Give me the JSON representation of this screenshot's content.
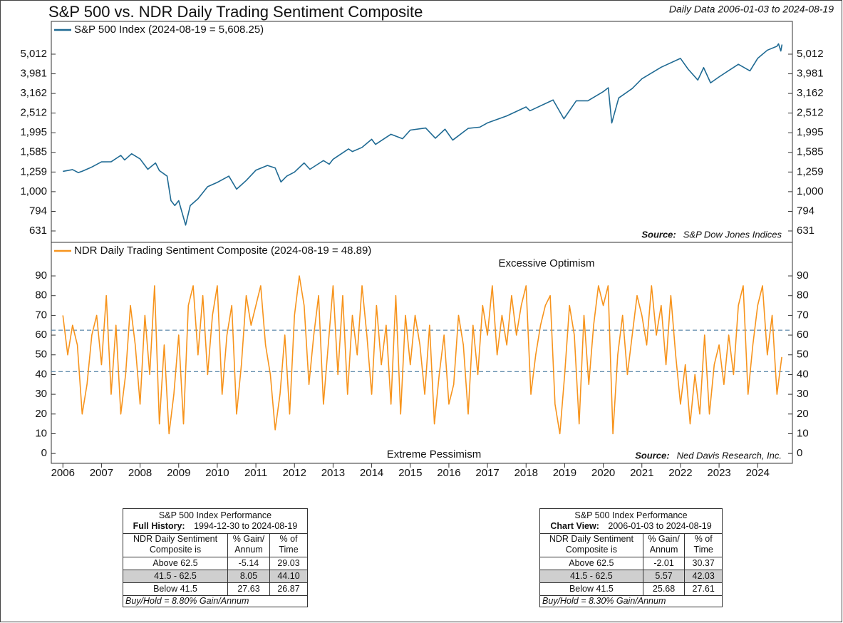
{
  "title": "S&P 500 vs. NDR Daily Trading Sentiment Composite",
  "subtitle": "Daily Data 2006-01-03 to 2024-08-19",
  "chart_data": [
    {
      "type": "line",
      "legend": "S&P 500 Index (2024-08-19 = 5,608.25)",
      "source_label": "Source:",
      "source": "S&P Dow Jones Indices",
      "log_scale": true,
      "xlim": [
        2005.7,
        2024.9
      ],
      "ylim": [
        552,
        7360
      ],
      "yticks": [
        {
          "value": 631,
          "label": "631"
        },
        {
          "value": 794,
          "label": "794"
        },
        {
          "value": 1000,
          "label": "1,000"
        },
        {
          "value": 1259,
          "label": "1,259"
        },
        {
          "value": 1585,
          "label": "1,585"
        },
        {
          "value": 1995,
          "label": "1,995"
        },
        {
          "value": 2512,
          "label": "2,512"
        },
        {
          "value": 3162,
          "label": "3,162"
        },
        {
          "value": 3981,
          "label": "3,981"
        },
        {
          "value": 5012,
          "label": "5,012"
        }
      ],
      "x": [
        2006.0,
        2006.25,
        2006.4,
        2006.5,
        2006.75,
        2007.0,
        2007.25,
        2007.5,
        2007.6,
        2007.78,
        2008.0,
        2008.2,
        2008.4,
        2008.5,
        2008.7,
        2008.8,
        2008.9,
        2009.0,
        2009.18,
        2009.3,
        2009.5,
        2009.75,
        2010.0,
        2010.3,
        2010.5,
        2010.75,
        2011.0,
        2011.3,
        2011.5,
        2011.65,
        2011.8,
        2012.0,
        2012.25,
        2012.4,
        2012.75,
        2012.9,
        2013.0,
        2013.4,
        2013.5,
        2013.75,
        2014.0,
        2014.1,
        2014.5,
        2014.8,
        2015.0,
        2015.4,
        2015.65,
        2015.9,
        2016.1,
        2016.5,
        2016.8,
        2017.0,
        2017.5,
        2018.0,
        2018.1,
        2018.7,
        2018.98,
        2019.3,
        2019.6,
        2020.0,
        2020.13,
        2020.22,
        2020.4,
        2020.75,
        2021.0,
        2021.5,
        2022.0,
        2022.2,
        2022.45,
        2022.6,
        2022.78,
        2023.0,
        2023.5,
        2023.8,
        2024.0,
        2024.25,
        2024.5,
        2024.54,
        2024.6,
        2024.63
      ],
      "series": [
        {
          "name": "S&P 500 Index",
          "color": "#1f6a93",
          "values": [
            1268,
            1295,
            1250,
            1270,
            1335,
            1418,
            1420,
            1530,
            1450,
            1560,
            1468,
            1300,
            1400,
            1280,
            1200,
            900,
            850,
            900,
            676,
            850,
            920,
            1060,
            1115,
            1200,
            1030,
            1140,
            1286,
            1360,
            1320,
            1120,
            1200,
            1258,
            1400,
            1300,
            1440,
            1380,
            1462,
            1650,
            1600,
            1680,
            1848,
            1740,
            1960,
            1860,
            2058,
            2110,
            1870,
            2080,
            1830,
            2100,
            2130,
            2239,
            2430,
            2700,
            2580,
            2930,
            2350,
            2900,
            2900,
            3230,
            3380,
            2237,
            3000,
            3350,
            3756,
            4300,
            4770,
            4200,
            3700,
            4280,
            3580,
            3840,
            4450,
            4120,
            4770,
            5250,
            5500,
            5660,
            5200,
            5608.25
          ]
        }
      ]
    },
    {
      "type": "line",
      "legend": "NDR Daily Trading Sentiment Composite (2024-08-19 = 48.89)",
      "source_label": "Source:",
      "source": "Ned Davis Research, Inc.",
      "top_note": "Excessive Optimism",
      "bottom_note": "Extreme Pessimism",
      "reference_lines": [
        62.5,
        41.5
      ],
      "xlim": [
        2005.7,
        2024.9
      ],
      "ylim": [
        -5,
        107
      ],
      "yticks": [
        0,
        10,
        20,
        30,
        40,
        50,
        60,
        70,
        80,
        90
      ],
      "xticks": [
        2006,
        2007,
        2008,
        2009,
        2010,
        2011,
        2012,
        2013,
        2014,
        2015,
        2016,
        2017,
        2018,
        2019,
        2020,
        2021,
        2022,
        2023,
        2024
      ],
      "x": [
        2006,
        2006.125,
        2006.25,
        2006.375,
        2006.5,
        2006.625,
        2006.75,
        2006.875,
        2007,
        2007.125,
        2007.25,
        2007.375,
        2007.5,
        2007.625,
        2007.75,
        2007.875,
        2008,
        2008.125,
        2008.25,
        2008.375,
        2008.5,
        2008.625,
        2008.75,
        2008.875,
        2009,
        2009.125,
        2009.25,
        2009.375,
        2009.5,
        2009.625,
        2009.75,
        2009.875,
        2010,
        2010.125,
        2010.25,
        2010.375,
        2010.5,
        2010.625,
        2010.75,
        2010.875,
        2011,
        2011.125,
        2011.25,
        2011.375,
        2011.5,
        2011.625,
        2011.75,
        2011.875,
        2012,
        2012.125,
        2012.25,
        2012.375,
        2012.5,
        2012.625,
        2012.75,
        2012.875,
        2013,
        2013.125,
        2013.25,
        2013.375,
        2013.5,
        2013.625,
        2013.75,
        2013.875,
        2014,
        2014.125,
        2014.25,
        2014.375,
        2014.5,
        2014.625,
        2014.75,
        2014.875,
        2015,
        2015.125,
        2015.25,
        2015.375,
        2015.5,
        2015.625,
        2015.75,
        2015.875,
        2016,
        2016.125,
        2016.25,
        2016.375,
        2016.5,
        2016.625,
        2016.75,
        2016.875,
        2017,
        2017.125,
        2017.25,
        2017.375,
        2017.5,
        2017.625,
        2017.75,
        2017.875,
        2018,
        2018.125,
        2018.25,
        2018.375,
        2018.5,
        2018.625,
        2018.75,
        2018.875,
        2019,
        2019.125,
        2019.25,
        2019.375,
        2019.5,
        2019.625,
        2019.75,
        2019.875,
        2020,
        2020.125,
        2020.25,
        2020.375,
        2020.5,
        2020.625,
        2020.75,
        2020.875,
        2021,
        2021.125,
        2021.25,
        2021.375,
        2021.5,
        2021.625,
        2021.75,
        2021.875,
        2022,
        2022.125,
        2022.25,
        2022.375,
        2022.5,
        2022.625,
        2022.75,
        2022.875,
        2023,
        2023.125,
        2023.25,
        2023.375,
        2023.5,
        2023.625,
        2023.75,
        2023.875,
        2024,
        2024.125,
        2024.25,
        2024.375,
        2024.5,
        2024.625
      ],
      "series": [
        {
          "name": "NDR Daily Trading Sentiment Composite",
          "color": "#f7941d",
          "values": [
            70,
            50,
            65,
            55,
            20,
            35,
            60,
            70,
            45,
            80,
            30,
            65,
            20,
            40,
            75,
            55,
            25,
            70,
            40,
            85,
            15,
            55,
            10,
            30,
            60,
            15,
            75,
            85,
            50,
            80,
            40,
            70,
            85,
            30,
            60,
            75,
            20,
            45,
            80,
            65,
            75,
            85,
            55,
            40,
            12,
            30,
            60,
            20,
            70,
            90,
            75,
            35,
            60,
            80,
            25,
            55,
            85,
            40,
            80,
            30,
            70,
            50,
            85,
            60,
            30,
            75,
            45,
            65,
            25,
            80,
            20,
            70,
            45,
            70,
            55,
            30,
            65,
            15,
            40,
            60,
            25,
            35,
            70,
            55,
            20,
            65,
            40,
            75,
            60,
            85,
            50,
            70,
            55,
            80,
            60,
            75,
            85,
            30,
            50,
            65,
            75,
            80,
            25,
            10,
            40,
            75,
            60,
            15,
            70,
            35,
            65,
            85,
            75,
            85,
            10,
            50,
            70,
            40,
            60,
            80,
            70,
            55,
            85,
            60,
            75,
            45,
            80,
            50,
            25,
            45,
            15,
            40,
            20,
            60,
            20,
            45,
            55,
            35,
            60,
            40,
            75,
            85,
            30,
            55,
            75,
            85,
            50,
            70,
            30,
            48.89
          ]
        }
      ]
    }
  ],
  "tables": [
    {
      "title": "S&P 500 Index Performance",
      "period_label": "Full History:",
      "period": "1994-12-30 to 2024-08-19",
      "columns": [
        "NDR Daily Sentiment Composite is",
        "% Gain/ Annum",
        "% of Time"
      ],
      "rows": [
        [
          "Above 62.5",
          "-5.14",
          "29.03"
        ],
        [
          "41.5 - 62.5",
          "8.05",
          "44.10"
        ],
        [
          "Below 41.5",
          "27.63",
          "26.87"
        ]
      ],
      "footer": "Buy/Hold = 8.80% Gain/Annum"
    },
    {
      "title": "S&P 500 Index Performance",
      "period_label": "Chart View:",
      "period": "2006-01-03 to 2024-08-19",
      "columns": [
        "NDR Daily Sentiment Composite is",
        "% Gain/ Annum",
        "% of Time"
      ],
      "rows": [
        [
          "Above 62.5",
          "-2.01",
          "30.37"
        ],
        [
          "41.5 - 62.5",
          "5.57",
          "42.03"
        ],
        [
          "Below 41.5",
          "25.68",
          "27.61"
        ]
      ],
      "footer": "Buy/Hold = 8.30% Gain/Annum"
    }
  ]
}
